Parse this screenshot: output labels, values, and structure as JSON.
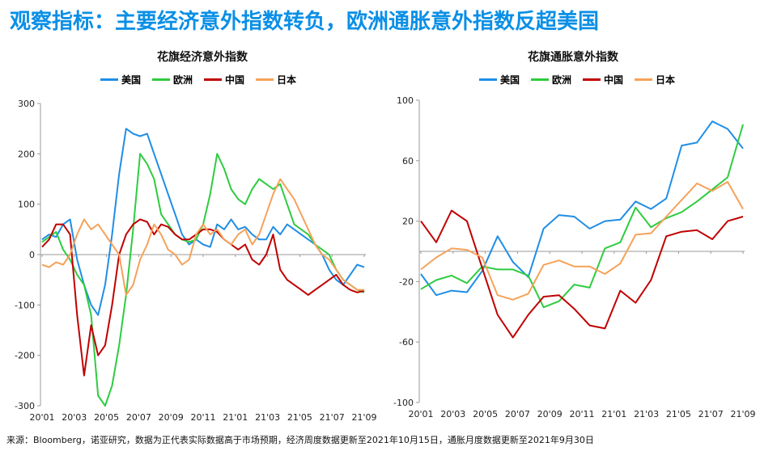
{
  "headline": "观察指标：主要经济意外指数转负，欧洲通胀意外指数反超美国",
  "source": "来源：Bloomberg，诺亚研究，数据为正代表实际数据高于市场预期，经济周度数据更新至2021年10月15日，通胀月度数据更新至2021年9月30日",
  "colors": {
    "us": "#1f8ee6",
    "eu": "#2ecc40",
    "cn": "#c00000",
    "jp": "#f5a25a"
  },
  "chart_data": [
    {
      "type": "line",
      "title": "花旗经济意外指数",
      "x_tick_labels": [
        "20'01",
        "20'03",
        "20'05",
        "20'07",
        "20'09",
        "20'11",
        "21'01",
        "21'03",
        "21'05",
        "21'07",
        "21'09"
      ],
      "ylim": [
        -300,
        300
      ],
      "y_ticks": [
        300,
        200,
        100,
        0,
        -100,
        -200,
        -300
      ],
      "legend": [
        "美国",
        "欧洲",
        "中国",
        "日本"
      ],
      "grid": false,
      "series": [
        {
          "name": "美国",
          "color_key": "us",
          "values": [
            30,
            40,
            35,
            60,
            70,
            -10,
            -60,
            -100,
            -120,
            -60,
            40,
            160,
            250,
            240,
            235,
            240,
            200,
            160,
            120,
            80,
            40,
            20,
            30,
            20,
            15,
            60,
            50,
            70,
            50,
            55,
            40,
            30,
            30,
            55,
            40,
            60,
            50,
            40,
            30,
            20,
            0,
            -30,
            -50,
            -60,
            -40,
            -20,
            -25
          ]
        },
        {
          "name": "欧洲",
          "color_key": "eu",
          "values": [
            25,
            35,
            45,
            10,
            -10,
            -40,
            -60,
            -120,
            -280,
            -300,
            -260,
            -180,
            -80,
            50,
            200,
            180,
            150,
            80,
            60,
            40,
            30,
            25,
            30,
            60,
            120,
            200,
            170,
            130,
            110,
            100,
            130,
            150,
            140,
            130,
            140,
            100,
            60,
            50,
            40,
            20,
            10,
            0,
            -30,
            -50,
            -60,
            -70,
            -75
          ]
        },
        {
          "name": "中国",
          "color_key": "cn",
          "values": [
            15,
            30,
            60,
            60,
            40,
            -120,
            -240,
            -140,
            -200,
            -180,
            -100,
            0,
            40,
            60,
            70,
            65,
            40,
            60,
            55,
            40,
            30,
            30,
            40,
            50,
            50,
            45,
            30,
            20,
            10,
            20,
            -10,
            -20,
            0,
            40,
            -30,
            -50,
            -60,
            -70,
            -80,
            -70,
            -60,
            -50,
            -40,
            -60,
            -70,
            -75,
            -72
          ]
        },
        {
          "name": "日本",
          "color_key": "jp",
          "values": [
            -20,
            -25,
            -15,
            -20,
            0,
            40,
            70,
            50,
            60,
            40,
            20,
            0,
            -80,
            -60,
            -10,
            20,
            60,
            40,
            10,
            0,
            -20,
            -10,
            40,
            60,
            40,
            50,
            30,
            20,
            40,
            50,
            20,
            40,
            80,
            120,
            150,
            130,
            110,
            80,
            50,
            20,
            0,
            -10,
            -30,
            -50,
            -60,
            -70,
            -70
          ]
        }
      ]
    },
    {
      "type": "line",
      "title": "花旗通胀意外指数",
      "x_tick_labels": [
        "20'01",
        "20'03",
        "20'05",
        "20'07",
        "20'09",
        "20'11",
        "21'01",
        "21'03",
        "21'05",
        "21'07",
        "21'09"
      ],
      "ylim": [
        -100,
        100
      ],
      "y_ticks": [
        100,
        60,
        20,
        -20,
        -60,
        -100
      ],
      "legend": [
        "美国",
        "欧洲",
        "中国",
        "日本"
      ],
      "grid": false,
      "series": [
        {
          "name": "美国",
          "color_key": "us",
          "values": [
            -15,
            -29,
            -26,
            -27,
            -13,
            10,
            -7,
            -17,
            15,
            24,
            23,
            15,
            20,
            21,
            33,
            28,
            35,
            70,
            72,
            86,
            81,
            68
          ]
        },
        {
          "name": "欧洲",
          "color_key": "eu",
          "values": [
            -25,
            -19,
            -16,
            -21,
            -10,
            -12,
            -12,
            -16,
            -37,
            -33,
            -22,
            -24,
            2,
            6,
            29,
            16,
            22,
            26,
            33,
            41,
            49,
            84
          ]
        },
        {
          "name": "中国",
          "color_key": "cn",
          "values": [
            20,
            6,
            27,
            20,
            -11,
            -42,
            -57,
            -42,
            -30,
            -29,
            -38,
            -49,
            -51,
            -26,
            -34,
            -19,
            10,
            13,
            14,
            8,
            20,
            23
          ]
        },
        {
          "name": "日本",
          "color_key": "jp",
          "values": [
            -12,
            -4,
            2,
            1,
            -4,
            -29,
            -32,
            -28,
            -9,
            -6,
            -10,
            -10,
            -15,
            -8,
            11,
            12,
            23,
            34,
            45,
            40,
            46,
            28
          ]
        }
      ]
    }
  ]
}
